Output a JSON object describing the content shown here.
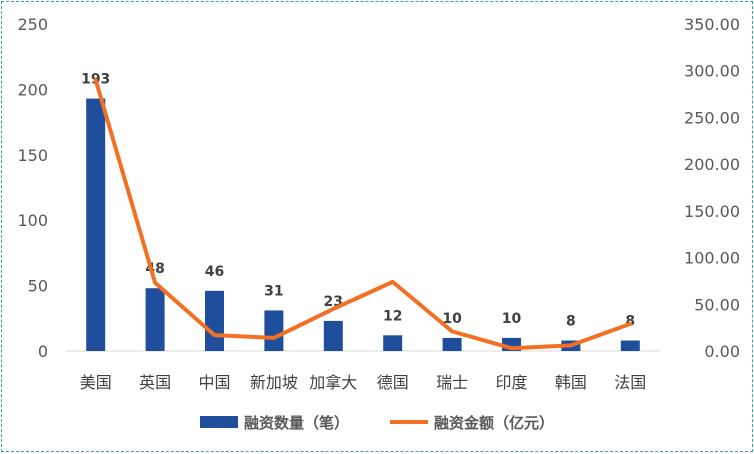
{
  "chart_data": {
    "type": "bar+line",
    "categories": [
      "美国",
      "英国",
      "中国",
      "新加坡",
      "加拿大",
      "德国",
      "瑞士",
      "印度",
      "韩国",
      "法国"
    ],
    "series": [
      {
        "name": "融资数量（笔）",
        "type": "bar",
        "axis": "left",
        "color": "#1f4e9c",
        "values": [
          193,
          48,
          46,
          31,
          23,
          12,
          10,
          10,
          8,
          8
        ],
        "data_labels": [
          "193",
          "48",
          "46",
          "31",
          "23",
          "12",
          "10",
          "10",
          "8",
          "8"
        ]
      },
      {
        "name": "融资金额（亿元）",
        "type": "line",
        "axis": "right",
        "color": "#f26f23",
        "values": [
          290,
          73,
          17,
          14,
          45,
          74,
          21,
          3,
          6,
          29
        ]
      }
    ],
    "y_left": {
      "range": [
        0,
        250
      ],
      "ticks": [
        "0",
        "50",
        "100",
        "150",
        "200",
        "250"
      ]
    },
    "y_right": {
      "range": [
        0,
        350
      ],
      "ticks": [
        "0.00",
        "50.00",
        "100.00",
        "150.00",
        "200.00",
        "250.00",
        "300.00",
        "350.00"
      ]
    },
    "grid": false,
    "legend": "bottom"
  }
}
